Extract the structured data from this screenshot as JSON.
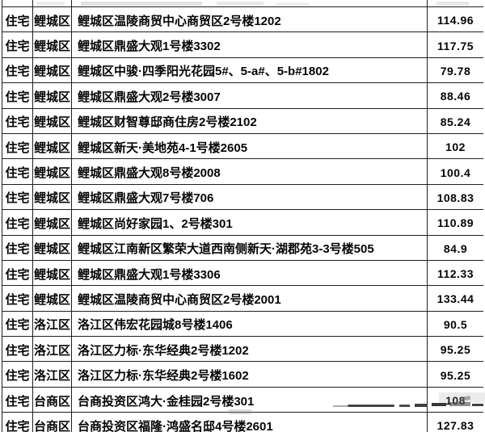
{
  "table": {
    "columns": {
      "type": "property-type",
      "district": "district",
      "address": "address",
      "area": "area-sqm"
    },
    "rows": [
      {
        "type": "住宅",
        "district": "鲤城区",
        "address": "鲤城区温陵商贸中心商贸区2号楼1202",
        "area": "114.96"
      },
      {
        "type": "住宅",
        "district": "鲤城区",
        "address": "鲤城区鼎盛大观1号楼3302",
        "area": "117.75"
      },
      {
        "type": "住宅",
        "district": "鲤城区",
        "address": "鲤城区中骏·四季阳光花园5#、5-a#、5-b#1802",
        "area": "79.78"
      },
      {
        "type": "住宅",
        "district": "鲤城区",
        "address": "鲤城区鼎盛大观2号楼3007",
        "area": "88.46"
      },
      {
        "type": "住宅",
        "district": "鲤城区",
        "address": "鲤城区财智尊邸商住房2号楼2102",
        "area": "85.24"
      },
      {
        "type": "住宅",
        "district": "鲤城区",
        "address": "鲤城区新天·美地苑4-1号楼2605",
        "area": "102"
      },
      {
        "type": "住宅",
        "district": "鲤城区",
        "address": "鲤城区鼎盛大观8号楼2008",
        "area": "100.4"
      },
      {
        "type": "住宅",
        "district": "鲤城区",
        "address": "鲤城区鼎盛大观7号楼706",
        "area": "108.83"
      },
      {
        "type": "住宅",
        "district": "鲤城区",
        "address": "鲤城区尚好家园1、2号楼301",
        "area": "110.89"
      },
      {
        "type": "住宅",
        "district": "鲤城区",
        "address": "鲤城区江南新区繁荣大道西南侧新天·湖郡苑3-3号楼505",
        "area": "84.9"
      },
      {
        "type": "住宅",
        "district": "鲤城区",
        "address": "鲤城区鼎盛大观1号楼3306",
        "area": "112.33"
      },
      {
        "type": "住宅",
        "district": "鲤城区",
        "address": "鲤城区温陵商贸中心商贸区2号楼2001",
        "area": "133.44"
      },
      {
        "type": "住宅",
        "district": "洛江区",
        "address": "洛江区伟宏花园城8号楼1406",
        "area": "90.5"
      },
      {
        "type": "住宅",
        "district": "洛江区",
        "address": "洛江区力标·东华经典2号楼1202",
        "area": "95.25"
      },
      {
        "type": "住宅",
        "district": "洛江区",
        "address": "洛江区力标·东华经典2号楼1602",
        "area": "95.25"
      },
      {
        "type": "住宅",
        "district": "台商区",
        "address": "台商投资区鸿大·金桂园2号楼301",
        "area": "108"
      },
      {
        "type": "住宅",
        "district": "台商区",
        "address": "台商投资区福隆·鸿盛名邸4号楼2601",
        "area": "127.83"
      }
    ]
  },
  "colors": {
    "border": "#1f1f1f",
    "text": "#050505",
    "smudge": "#3e3e3e",
    "background": "#ffffff"
  }
}
